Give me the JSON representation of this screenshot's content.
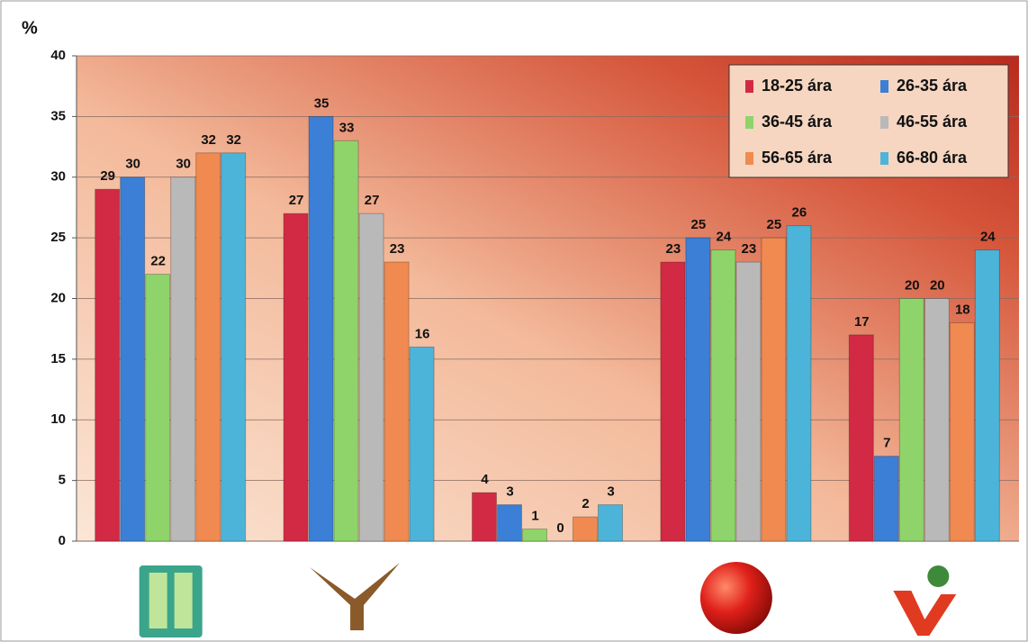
{
  "chart_data": {
    "type": "bar",
    "y_label": "%",
    "categories": [
      null,
      null,
      null,
      null,
      null
    ],
    "series": [
      {
        "name": "18-25 ára",
        "color": "#d22a44",
        "values": [
          29,
          27,
          4,
          23,
          17
        ]
      },
      {
        "name": "26-35 ára",
        "color": "#3b7fd6",
        "values": [
          30,
          35,
          3,
          25,
          7
        ]
      },
      {
        "name": "36-45 ára",
        "color": "#8ed46a",
        "values": [
          22,
          33,
          1,
          24,
          20
        ]
      },
      {
        "name": "46-55 ára",
        "color": "#b9b9b9",
        "values": [
          30,
          27,
          0,
          23,
          20
        ]
      },
      {
        "name": "56-65 ára",
        "color": "#f08a50",
        "values": [
          32,
          23,
          2,
          25,
          18
        ]
      },
      {
        "name": "66-80 ára",
        "color": "#4db4d9",
        "values": [
          32,
          16,
          3,
          26,
          24
        ]
      }
    ],
    "ylim": [
      0,
      40
    ],
    "yticks": [
      0,
      5,
      10,
      15,
      20,
      25,
      30,
      35,
      40
    ],
    "grid": true,
    "legend": "top-right"
  }
}
